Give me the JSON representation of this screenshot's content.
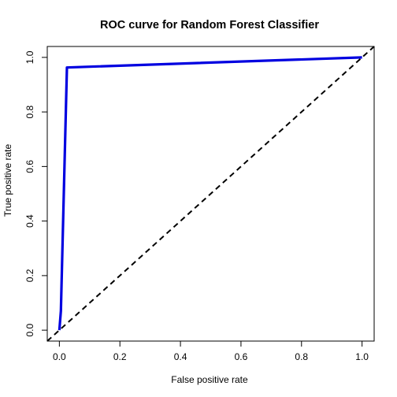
{
  "chart_data": {
    "type": "line",
    "title": "ROC curve for Random Forest Classifier",
    "xlabel": "False positive rate",
    "ylabel": "True positive rate",
    "xlim": [
      -0.04,
      1.04
    ],
    "ylim": [
      -0.04,
      1.04
    ],
    "xticks": [
      0.0,
      0.2,
      0.4,
      0.6,
      0.8,
      1.0
    ],
    "yticks": [
      0.0,
      0.2,
      0.4,
      0.6,
      0.8,
      1.0
    ],
    "xtick_labels": [
      "0.0",
      "0.2",
      "0.4",
      "0.6",
      "0.8",
      "1.0"
    ],
    "ytick_labels": [
      "0.0",
      "0.2",
      "0.4",
      "0.6",
      "0.8",
      "1.0"
    ],
    "grid": false,
    "series": [
      {
        "x": [
          0.0,
          0.005,
          0.025,
          1.0
        ],
        "y": [
          0.0,
          0.07,
          0.963,
          1.0
        ],
        "color": "#0000e0",
        "style": "solid"
      },
      {
        "x": [
          -0.04,
          1.04
        ],
        "y": [
          -0.04,
          1.04
        ],
        "color": "#000000",
        "style": "dashed"
      }
    ]
  }
}
